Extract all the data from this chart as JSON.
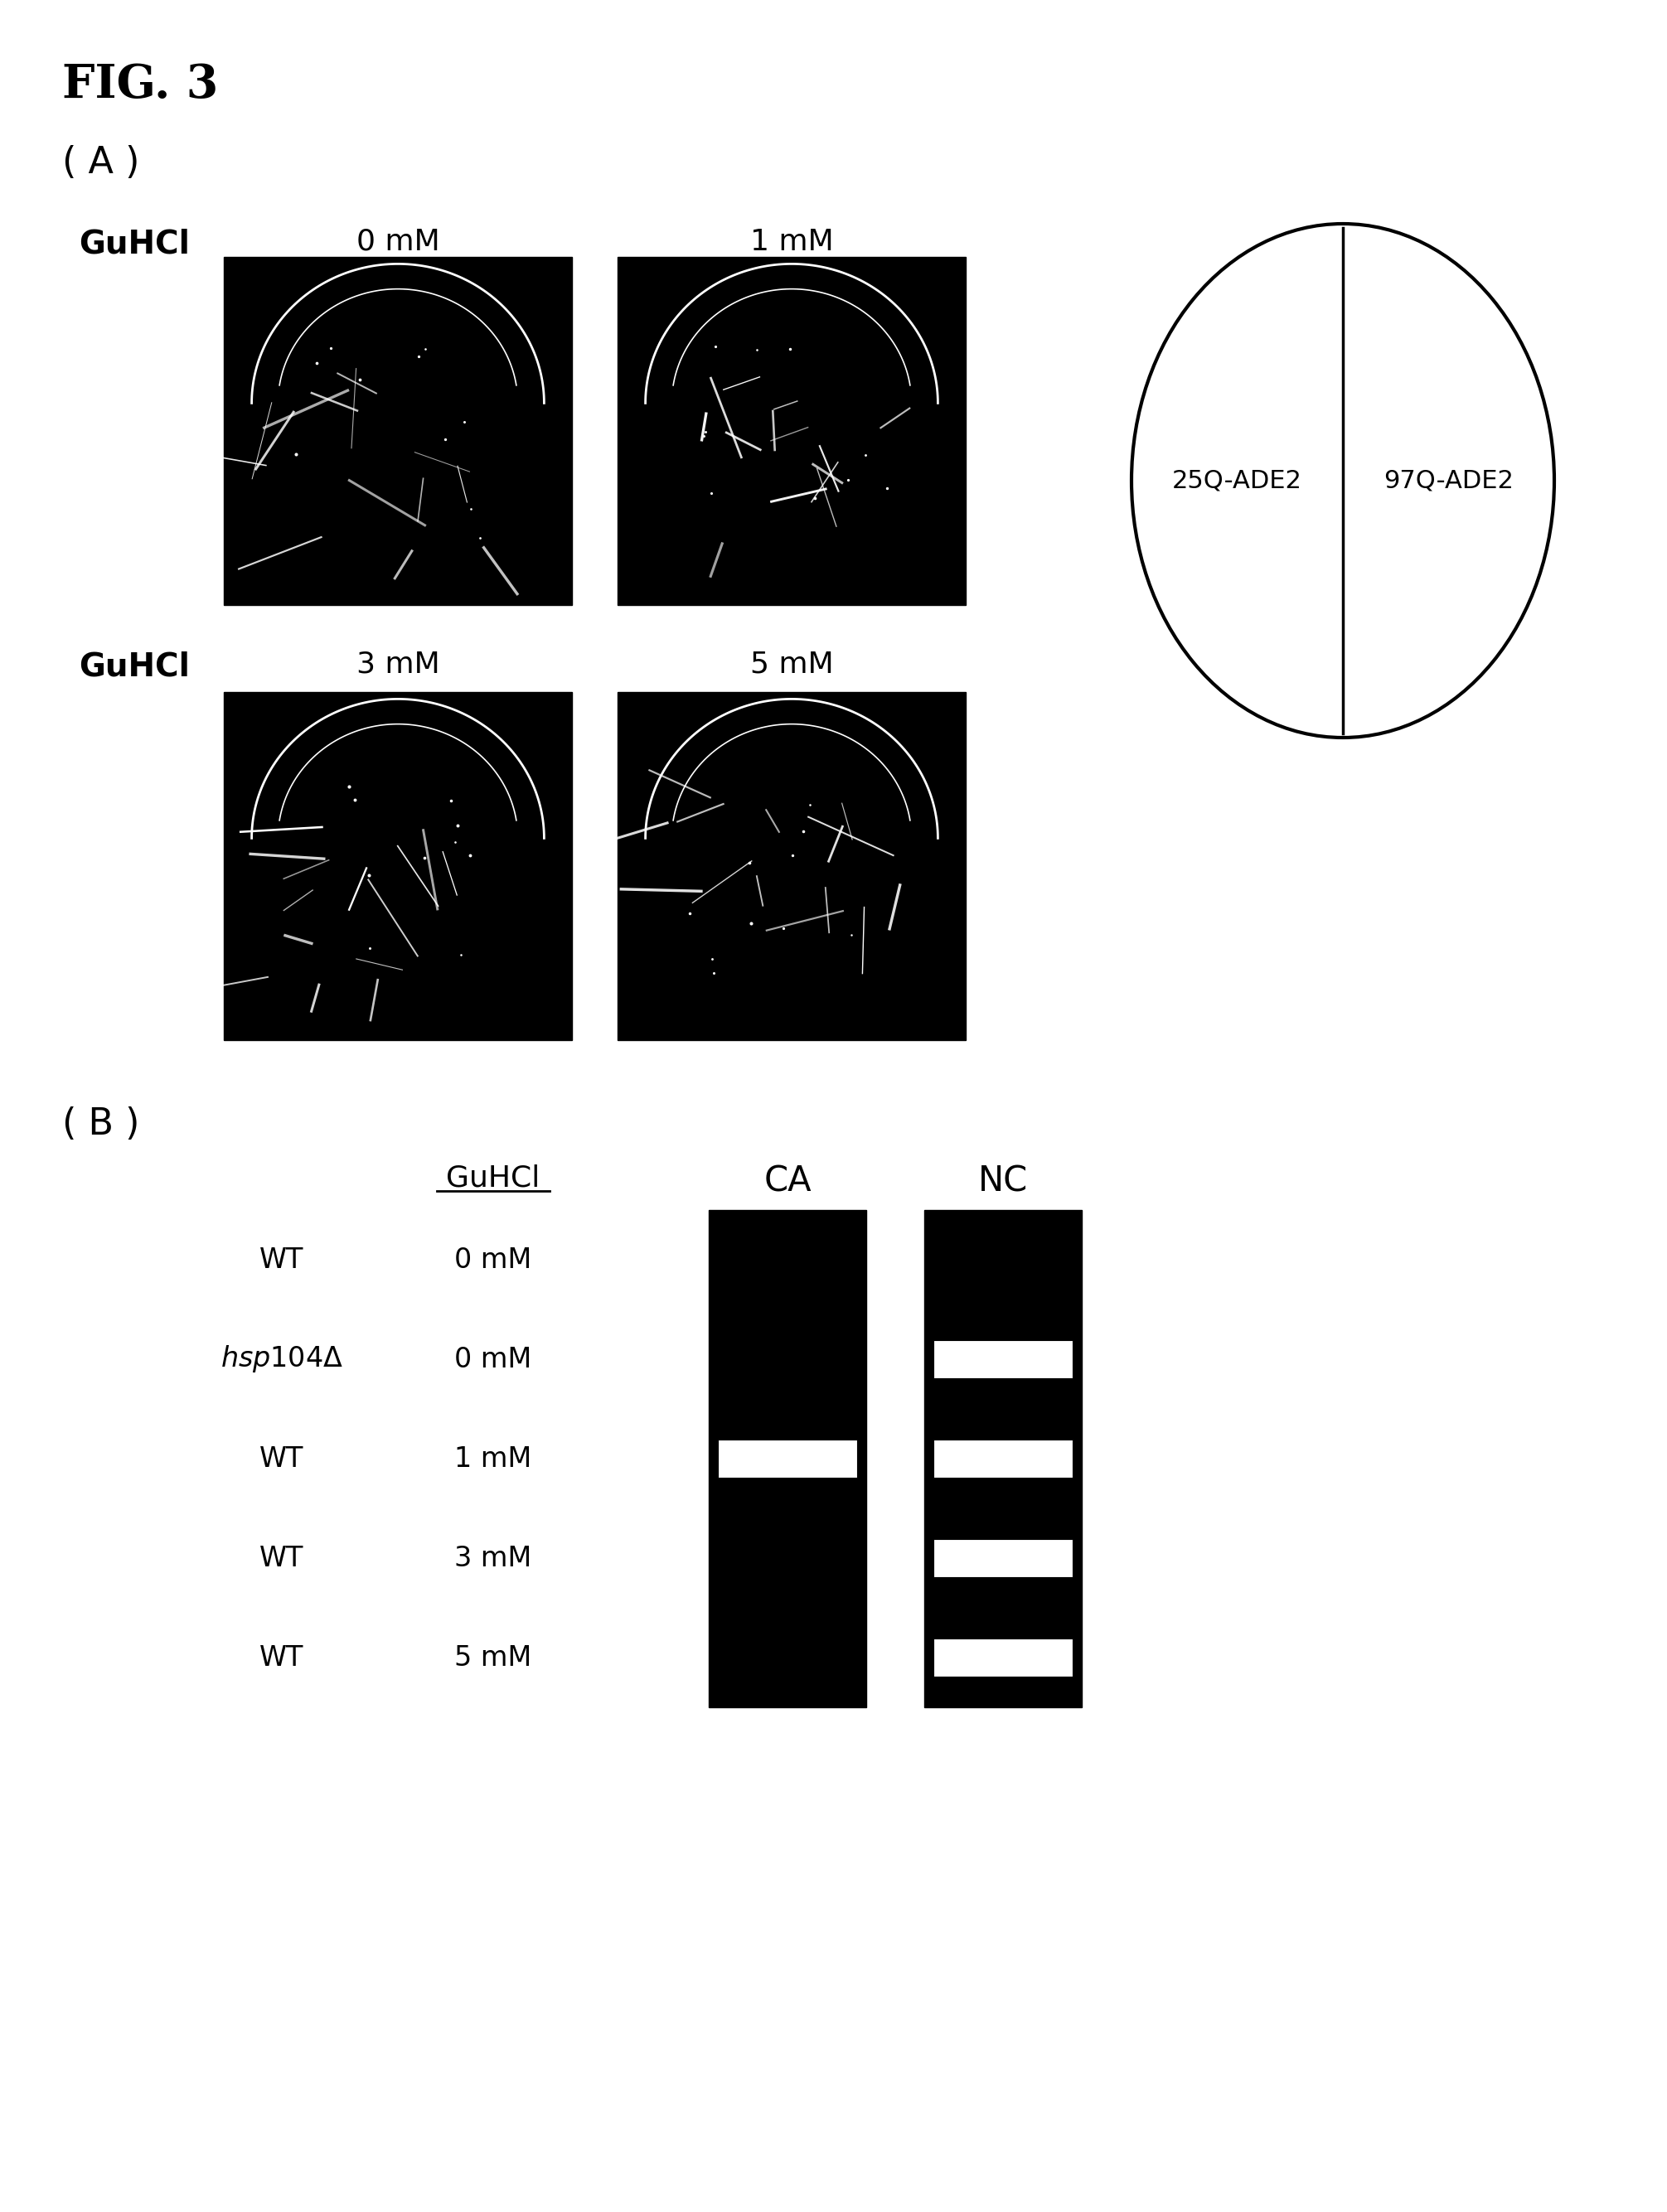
{
  "fig_label": "FIG. 3",
  "panel_a_label": "( A )",
  "panel_b_label": "( B )",
  "guhcl_label": "GuHCl",
  "plate_concentrations_row1": [
    "0 mM",
    "1 mM"
  ],
  "plate_concentrations_row2": [
    "3 mM",
    "5 mM"
  ],
  "circle_labels": [
    "25Q-ADE2",
    "97Q-ADE2"
  ],
  "b_col_headers": [
    "GuHCl",
    "CA",
    "NC"
  ],
  "b_rows": [
    [
      "WT",
      "0 mM"
    ],
    [
      "hsp104Δ",
      "0 mM"
    ],
    [
      "WT",
      "1 mM"
    ],
    [
      "WT",
      "3 mM"
    ],
    [
      "WT",
      "5 mM"
    ]
  ],
  "background_color": "#ffffff",
  "plate_bg_color": "#000000",
  "text_color": "#000000"
}
